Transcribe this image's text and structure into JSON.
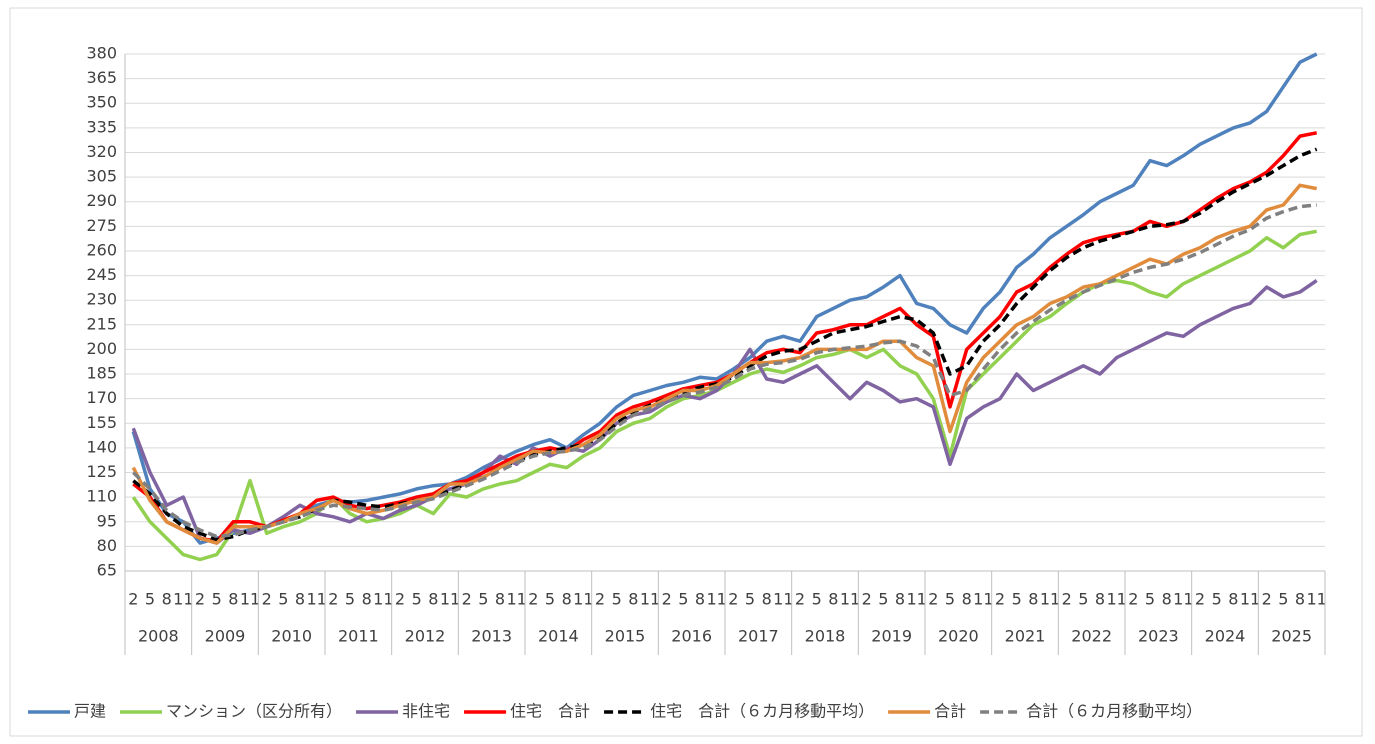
{
  "chart_data": {
    "type": "line",
    "categories": [
      "2",
      "5",
      "8",
      "11",
      "2",
      "5",
      "8",
      "11",
      "2",
      "5",
      "8",
      "11",
      "2",
      "5",
      "8",
      "11",
      "2",
      "5",
      "8",
      "11",
      "2",
      "5",
      "8",
      "11",
      "2",
      "5",
      "8",
      "11",
      "2",
      "5",
      "8",
      "11",
      "2",
      "5",
      "8",
      "11",
      "2",
      "5",
      "8",
      "11",
      "2",
      "5",
      "8",
      "11",
      "2",
      "5",
      "8",
      "11",
      "2",
      "5",
      "8",
      "11",
      "2",
      "5",
      "8",
      "11",
      "2",
      "5",
      "8",
      "11",
      "2",
      "5",
      "8",
      "11",
      "2",
      "5",
      "8",
      "11",
      "2",
      "5",
      "8",
      "11"
    ],
    "groups": [
      "2008",
      "2009",
      "2010",
      "2011",
      "2012",
      "2013",
      "2014",
      "2015",
      "2016",
      "2017",
      "2018",
      "2019",
      "2020",
      "2021",
      "2022",
      "2023",
      "2024",
      "2025"
    ],
    "ylim": [
      65,
      380
    ],
    "yticks": [
      65,
      80,
      95,
      110,
      125,
      140,
      155,
      170,
      185,
      200,
      215,
      230,
      245,
      260,
      275,
      290,
      305,
      320,
      335,
      350,
      365,
      380
    ],
    "grid": true,
    "legend": "bottom",
    "series": [
      {
        "name": "戸建",
        "color": "#4f81bd",
        "dashed": false,
        "values": [
          150,
          115,
          100,
          95,
          82,
          85,
          88,
          90,
          92,
          95,
          100,
          105,
          108,
          107,
          108,
          110,
          112,
          115,
          117,
          118,
          122,
          128,
          133,
          138,
          142,
          145,
          140,
          148,
          155,
          165,
          172,
          175,
          178,
          180,
          183,
          182,
          188,
          195,
          205,
          208,
          205,
          220,
          225,
          230,
          232,
          238,
          245,
          228,
          225,
          215,
          210,
          225,
          235,
          250,
          258,
          268,
          275,
          282,
          290,
          295,
          300,
          315,
          312,
          318,
          325,
          330,
          335,
          338,
          345,
          360,
          375,
          380
        ]
      },
      {
        "name": "マンション（区分所有）",
        "color": "#92d050",
        "dashed": false,
        "values": [
          110,
          95,
          85,
          75,
          72,
          75,
          90,
          120,
          88,
          92,
          95,
          100,
          110,
          100,
          95,
          97,
          100,
          105,
          100,
          112,
          110,
          115,
          118,
          120,
          125,
          130,
          128,
          135,
          140,
          150,
          155,
          158,
          165,
          170,
          172,
          175,
          180,
          185,
          188,
          186,
          190,
          195,
          197,
          200,
          195,
          200,
          190,
          185,
          170,
          135,
          175,
          185,
          195,
          205,
          215,
          220,
          228,
          235,
          240,
          242,
          240,
          235,
          232,
          240,
          245,
          250,
          255,
          260,
          268,
          262,
          270,
          272
        ]
      },
      {
        "name": "非住宅",
        "color": "#8064a2",
        "dashed": false,
        "values": [
          152,
          125,
          105,
          110,
          85,
          82,
          90,
          88,
          92,
          98,
          105,
          100,
          98,
          95,
          100,
          97,
          102,
          105,
          110,
          115,
          118,
          125,
          135,
          130,
          140,
          135,
          140,
          138,
          145,
          155,
          160,
          162,
          168,
          172,
          170,
          175,
          185,
          200,
          182,
          180,
          185,
          190,
          180,
          170,
          180,
          175,
          168,
          170,
          165,
          130,
          158,
          165,
          170,
          185,
          175,
          180,
          185,
          190,
          185,
          195,
          200,
          205,
          210,
          208,
          215,
          220,
          225,
          228,
          238,
          232,
          235,
          242
        ]
      },
      {
        "name": "住宅　合計",
        "color": "#ff0000",
        "dashed": false,
        "values": [
          118,
          110,
          95,
          90,
          85,
          83,
          95,
          95,
          92,
          96,
          100,
          108,
          110,
          105,
          103,
          105,
          107,
          110,
          112,
          118,
          120,
          125,
          130,
          135,
          138,
          140,
          138,
          145,
          150,
          160,
          165,
          168,
          172,
          176,
          178,
          180,
          185,
          192,
          198,
          200,
          198,
          210,
          212,
          215,
          215,
          220,
          225,
          215,
          208,
          165,
          200,
          210,
          220,
          235,
          240,
          250,
          258,
          265,
          268,
          270,
          272,
          278,
          275,
          278,
          285,
          292,
          298,
          302,
          308,
          318,
          330,
          332
        ]
      },
      {
        "name": "住宅　合計（６カ月移動平均）",
        "color": "#000000",
        "dashed": true,
        "values": [
          120,
          112,
          100,
          92,
          88,
          84,
          86,
          90,
          92,
          95,
          98,
          103,
          108,
          107,
          105,
          104,
          106,
          108,
          110,
          114,
          118,
          122,
          128,
          132,
          136,
          138,
          140,
          142,
          146,
          155,
          162,
          166,
          170,
          174,
          177,
          179,
          183,
          190,
          196,
          199,
          200,
          205,
          210,
          212,
          214,
          217,
          220,
          218,
          210,
          185,
          190,
          205,
          215,
          228,
          238,
          248,
          256,
          262,
          266,
          269,
          272,
          275,
          276,
          278,
          283,
          290,
          296,
          301,
          306,
          312,
          318,
          322
        ]
      },
      {
        "name": "合計",
        "color": "#e08c3c",
        "dashed": false,
        "values": [
          128,
          108,
          95,
          90,
          85,
          82,
          92,
          92,
          92,
          95,
          100,
          103,
          108,
          103,
          100,
          102,
          105,
          108,
          110,
          118,
          118,
          122,
          128,
          133,
          138,
          137,
          138,
          142,
          148,
          158,
          163,
          165,
          170,
          175,
          175,
          178,
          185,
          192,
          192,
          193,
          195,
          200,
          200,
          200,
          200,
          205,
          205,
          195,
          190,
          150,
          180,
          195,
          205,
          215,
          220,
          228,
          232,
          238,
          240,
          245,
          250,
          255,
          252,
          258,
          262,
          268,
          272,
          275,
          285,
          288,
          300,
          298
        ]
      },
      {
        "name": "合計（６カ月移動平均）",
        "color": "#808080",
        "dashed": true,
        "values": [
          125,
          115,
          102,
          95,
          90,
          86,
          87,
          90,
          92,
          95,
          98,
          102,
          105,
          104,
          103,
          102,
          104,
          107,
          109,
          113,
          117,
          121,
          126,
          131,
          135,
          137,
          138,
          140,
          145,
          153,
          160,
          164,
          168,
          172,
          174,
          177,
          182,
          188,
          191,
          192,
          194,
          198,
          200,
          201,
          202,
          204,
          205,
          202,
          195,
          172,
          175,
          188,
          200,
          210,
          217,
          224,
          230,
          235,
          239,
          243,
          247,
          250,
          252,
          255,
          259,
          264,
          269,
          273,
          280,
          284,
          287,
          288
        ]
      }
    ]
  }
}
